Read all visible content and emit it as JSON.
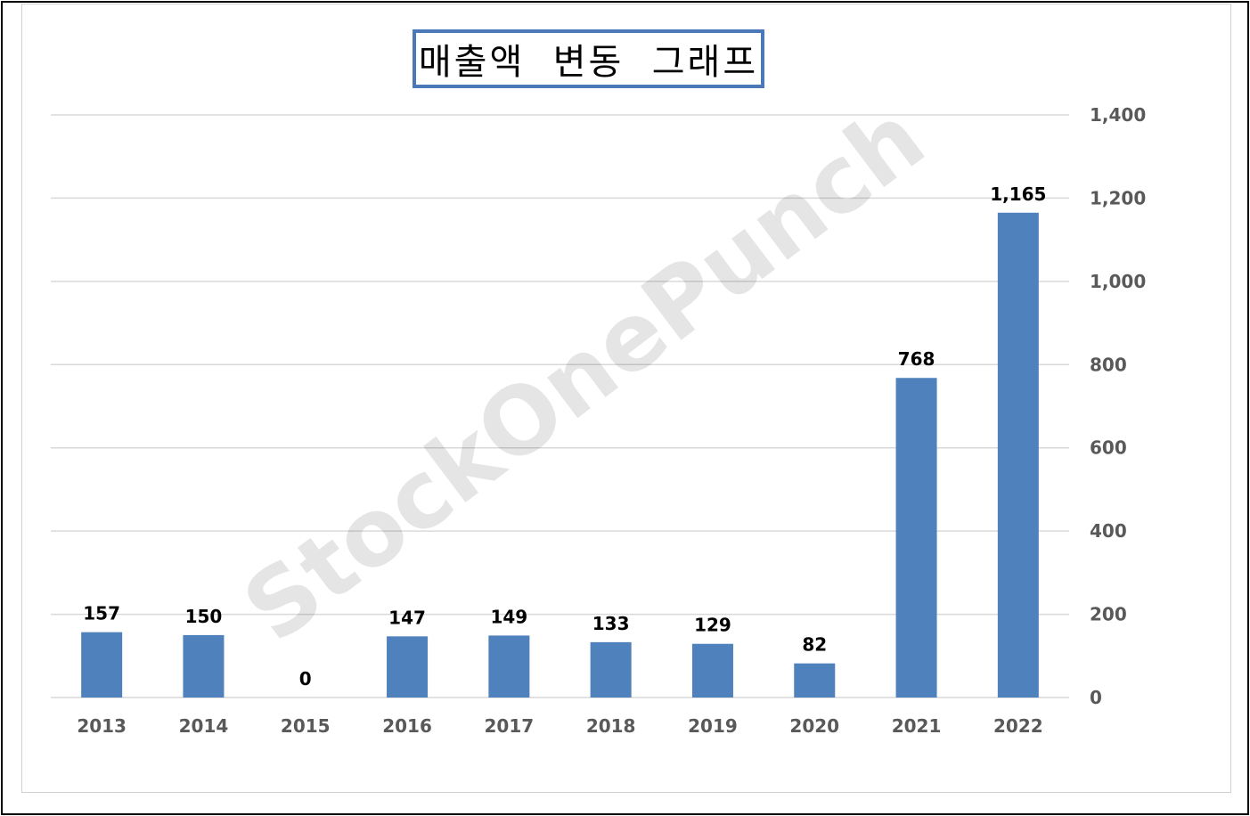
{
  "chart_data": {
    "type": "bar",
    "title": "매출액  변동  그래프",
    "categories": [
      "2013",
      "2014",
      "2015",
      "2016",
      "2017",
      "2018",
      "2019",
      "2020",
      "2021",
      "2022"
    ],
    "series": [
      {
        "values": [
          157,
          150,
          0,
          147,
          149,
          133,
          129,
          82,
          768,
          1165
        ],
        "color": "#4f81bd"
      }
    ],
    "data_labels": [
      "157",
      "150",
      "0",
      "147",
      "149",
      "133",
      "129",
      "82",
      "768",
      "1,165"
    ],
    "yaxis": {
      "position": "right",
      "ylim": [
        0,
        1400
      ],
      "ticks": [
        0,
        200,
        400,
        600,
        800,
        1000,
        1200,
        1400
      ],
      "tick_labels": [
        "0",
        "200",
        "400",
        "600",
        "800",
        "1,000",
        "1,200",
        "1,400"
      ]
    },
    "grid": true,
    "xlabel": "",
    "ylabel": ""
  },
  "watermark": "StockOnePunch",
  "colors": {
    "bar": "#4f81bd",
    "grid": "#d9d9d9",
    "tick_text": "#595959",
    "title_border": "#4a78b8"
  }
}
